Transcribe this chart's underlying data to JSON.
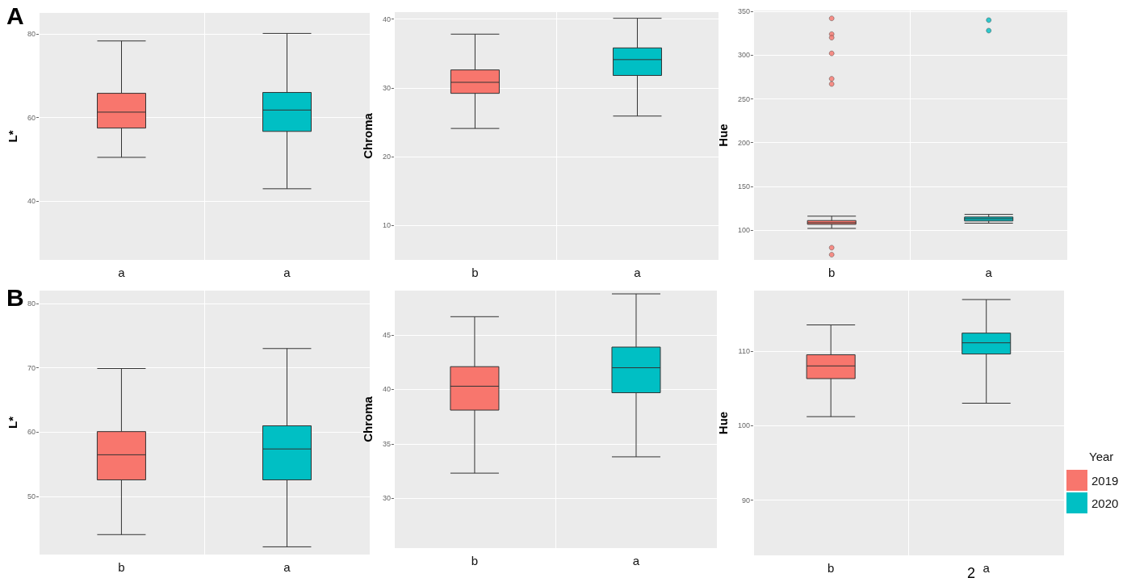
{
  "chart_data": [
    {
      "type": "box",
      "ylabel": "L*",
      "categories": [
        "a",
        "a"
      ],
      "ylim": [
        26,
        85
      ],
      "yticks": [
        40,
        60,
        80
      ],
      "grid": true,
      "annotations": [
        "A"
      ],
      "series": [
        {
          "color": "#f8766d",
          "boxes": [
            {
              "low": 50.5,
              "q1": 57.5,
              "median": 61.3,
              "q3": 65.8,
              "high": 78.3
            },
            null
          ]
        },
        {
          "color": "#00bfc4",
          "boxes": [
            null,
            {
              "low": 43,
              "q1": 56.7,
              "median": 61.8,
              "q3": 66,
              "high": 80.1
            }
          ]
        }
      ]
    },
    {
      "type": "box",
      "ylabel": "Chroma",
      "categories": [
        "b",
        "a"
      ],
      "ylim": [
        5,
        41
      ],
      "yticks": [
        10,
        20,
        30,
        40
      ],
      "grid": true,
      "series": [
        {
          "color": "#f8766d",
          "boxes": [
            {
              "low": 24.1,
              "q1": 29.2,
              "median": 30.8,
              "q3": 32.6,
              "high": 37.8
            },
            null
          ]
        },
        {
          "color": "#00bfc4",
          "boxes": [
            null,
            {
              "low": 25.9,
              "q1": 31.8,
              "median": 34.1,
              "q3": 35.8,
              "high": 40.1
            }
          ]
        }
      ]
    },
    {
      "type": "box",
      "ylabel": "Hue",
      "categories": [
        "b",
        "a"
      ],
      "ylim": [
        66,
        351
      ],
      "yticks": [
        100,
        150,
        200,
        250,
        300,
        350
      ],
      "grid": true,
      "series": [
        {
          "color": "#f8766d",
          "boxes": [
            {
              "low": 102,
              "q1": 106.7,
              "median": 108.5,
              "q3": 111,
              "high": 116,
              "outliers": [
                342,
                324,
                320,
                302,
                273,
                267,
                80,
                72
              ]
            },
            null
          ]
        },
        {
          "color": "#00bfc4",
          "boxes": [
            null,
            {
              "low": 108,
              "q1": 110.5,
              "median": 113,
              "q3": 115,
              "high": 118,
              "outliers": [
                340,
                328
              ]
            }
          ]
        }
      ]
    },
    {
      "type": "box",
      "ylabel": "L*",
      "categories": [
        "b",
        "a"
      ],
      "ylim": [
        41,
        82
      ],
      "yticks": [
        50,
        60,
        70,
        80
      ],
      "grid": true,
      "annotations": [
        "B"
      ],
      "series": [
        {
          "color": "#f8766d",
          "boxes": [
            {
              "low": 44.1,
              "q1": 52.6,
              "median": 56.5,
              "q3": 60.1,
              "high": 69.9
            },
            null
          ]
        },
        {
          "color": "#00bfc4",
          "boxes": [
            null,
            {
              "low": 42.2,
              "q1": 52.6,
              "median": 57.4,
              "q3": 61,
              "high": 73
            }
          ]
        }
      ]
    },
    {
      "type": "box",
      "ylabel": "Chroma",
      "categories": [
        "b",
        "a"
      ],
      "ylim": [
        25.4,
        49.1
      ],
      "yticks": [
        30,
        35,
        40,
        45
      ],
      "grid": true,
      "series": [
        {
          "color": "#f8766d",
          "boxes": [
            {
              "low": 32.3,
              "q1": 38.1,
              "median": 40.3,
              "q3": 42.1,
              "high": 46.7
            },
            null
          ]
        },
        {
          "color": "#00bfc4",
          "boxes": [
            null,
            {
              "low": 33.8,
              "q1": 39.7,
              "median": 42,
              "q3": 43.9,
              "high": 48.8
            }
          ]
        }
      ]
    },
    {
      "type": "box",
      "ylabel": "Hue",
      "categories": [
        "b",
        "a"
      ],
      "ylim": [
        82.6,
        118.1
      ],
      "yticks": [
        90,
        100,
        110
      ],
      "grid": true,
      "legend": "right",
      "legend_title": "Year",
      "annotations": [
        "2"
      ],
      "series": [
        {
          "name": "2019",
          "color": "#f8766d",
          "boxes": [
            {
              "low": 101.2,
              "q1": 106.3,
              "median": 108,
              "q3": 109.5,
              "high": 113.5
            },
            null
          ]
        },
        {
          "name": "2020",
          "color": "#00bfc4",
          "boxes": [
            null,
            {
              "low": 103,
              "q1": 109.6,
              "median": 111.1,
              "q3": 112.4,
              "high": 116.9
            }
          ]
        }
      ]
    }
  ]
}
